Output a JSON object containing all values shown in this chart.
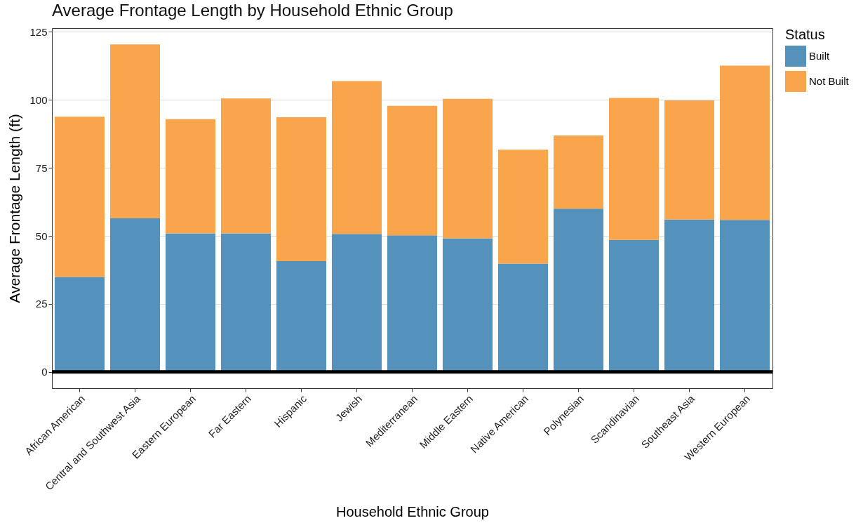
{
  "chart_data": {
    "type": "bar",
    "title": "Average Frontage Length by Household Ethnic Group",
    "xlabel": "Household Ethnic Group",
    "ylabel": "Average Frontage Length (ft)",
    "legend_title": "Status",
    "categories": [
      "African American",
      "Central and Southwest Asia",
      "Eastern European",
      "Far Eastern",
      "Hispanic",
      "Jewish",
      "Mediterranean",
      "Middle Eastern",
      "Native American",
      "Polynesian",
      "Scandinavian",
      "Southeast Asia",
      "Western European"
    ],
    "series": [
      {
        "name": "Built",
        "color": "#5592bb",
        "values": [
          34.9,
          56.5,
          50.9,
          50.9,
          40.7,
          50.7,
          50.2,
          49.1,
          39.8,
          60.0,
          48.5,
          56.0,
          55.9
        ]
      },
      {
        "name": "Not Built",
        "color": "#f9a54c",
        "values": [
          58.9,
          63.9,
          42.0,
          49.6,
          52.9,
          56.2,
          47.6,
          51.3,
          41.9,
          26.9,
          52.2,
          43.8,
          56.7
        ]
      }
    ],
    "stacked": true,
    "ylim": [
      -6,
      126.4
    ],
    "yticks": [
      0,
      25,
      50,
      75,
      100,
      125
    ],
    "grid": "y",
    "legend": "right",
    "ref_lines": [
      {
        "axis": "y",
        "value": 0,
        "color": "#000000"
      }
    ]
  }
}
